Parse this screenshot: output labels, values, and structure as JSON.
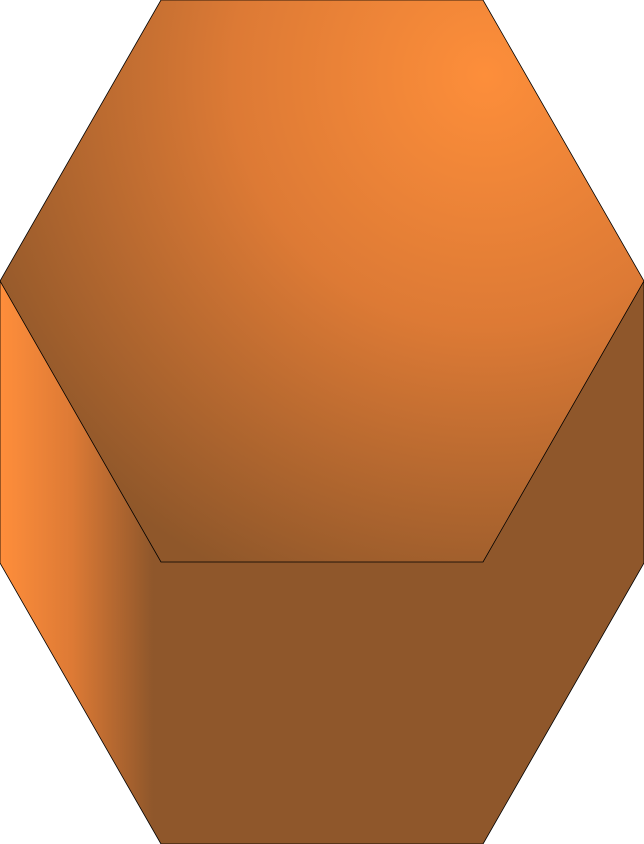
{
  "shape": {
    "type": "hexagonal-prism",
    "view": "top-front",
    "colors": {
      "top_highlight": "#fd8e3a",
      "top_mid": "#dd7a35",
      "top_shadow": "#8f572a",
      "side_highlight": "#ff8e3b",
      "side_base": "#8f572b",
      "outline": "#000000"
    }
  }
}
